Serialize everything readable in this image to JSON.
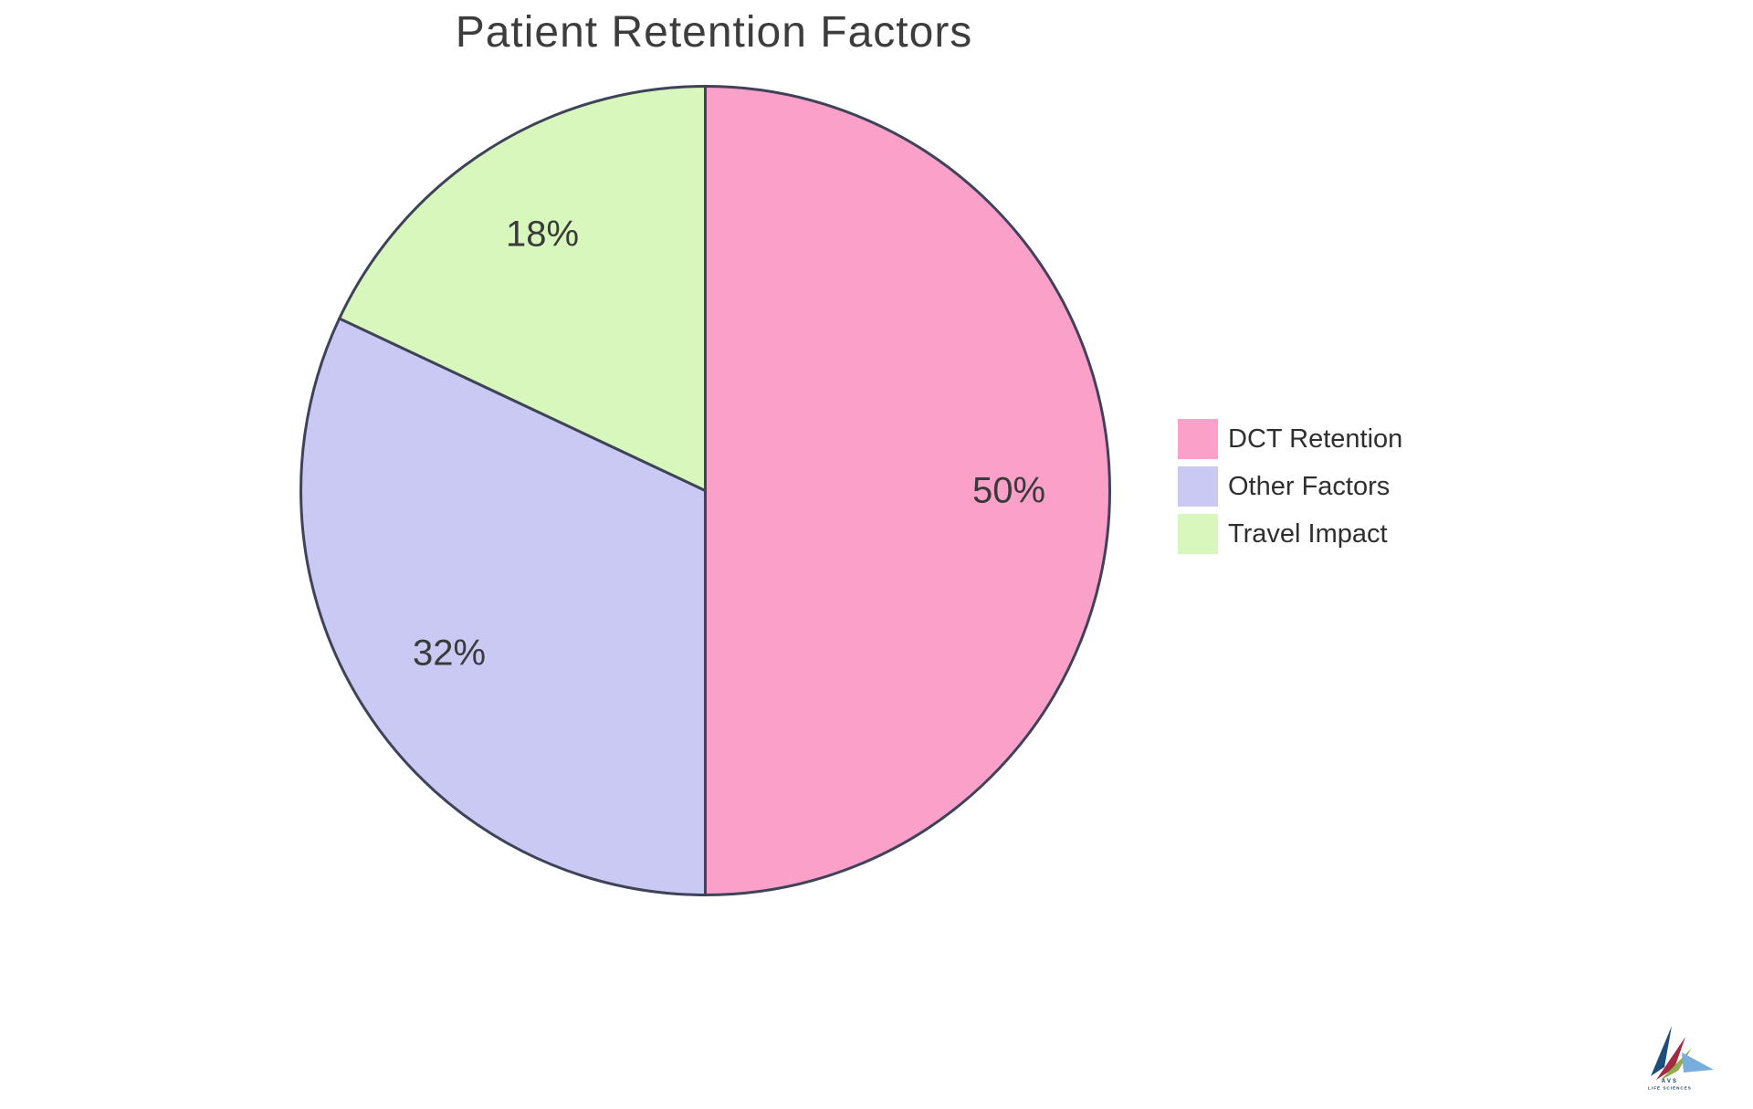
{
  "title": {
    "text": "Patient Retention Factors"
  },
  "chart_data": {
    "type": "pie",
    "title": "Patient Retention Factors",
    "categories": [
      "DCT Retention",
      "Other Factors",
      "Travel Impact"
    ],
    "values": [
      50,
      32,
      18
    ],
    "slice_labels": [
      "50%",
      "32%",
      "18%"
    ],
    "colors": [
      "#FAA0C9",
      "#C9C9F3",
      "#D8F7BC"
    ],
    "stroke_color": "#3E4359",
    "start_angle": "top",
    "direction": "clockwise",
    "legend_position": "right",
    "legend_entries": [
      "DCT Retention",
      "Other Factors",
      "Travel Impact"
    ]
  },
  "legend": {
    "items": [
      {
        "label": "DCT Retention",
        "color": "#FAA0C9"
      },
      {
        "label": "Other Factors",
        "color": "#C9C9F3"
      },
      {
        "label": "Travel Impact",
        "color": "#D8F7BC"
      }
    ]
  },
  "logo": {
    "text_line1": "AVS",
    "text_line2": "LIFE SCIENCES",
    "colors": {
      "navy": "#1D4E7A",
      "crimson": "#A42A44",
      "olive": "#8FAE4E",
      "blue": "#78AEDE",
      "text": "#16365C"
    }
  }
}
